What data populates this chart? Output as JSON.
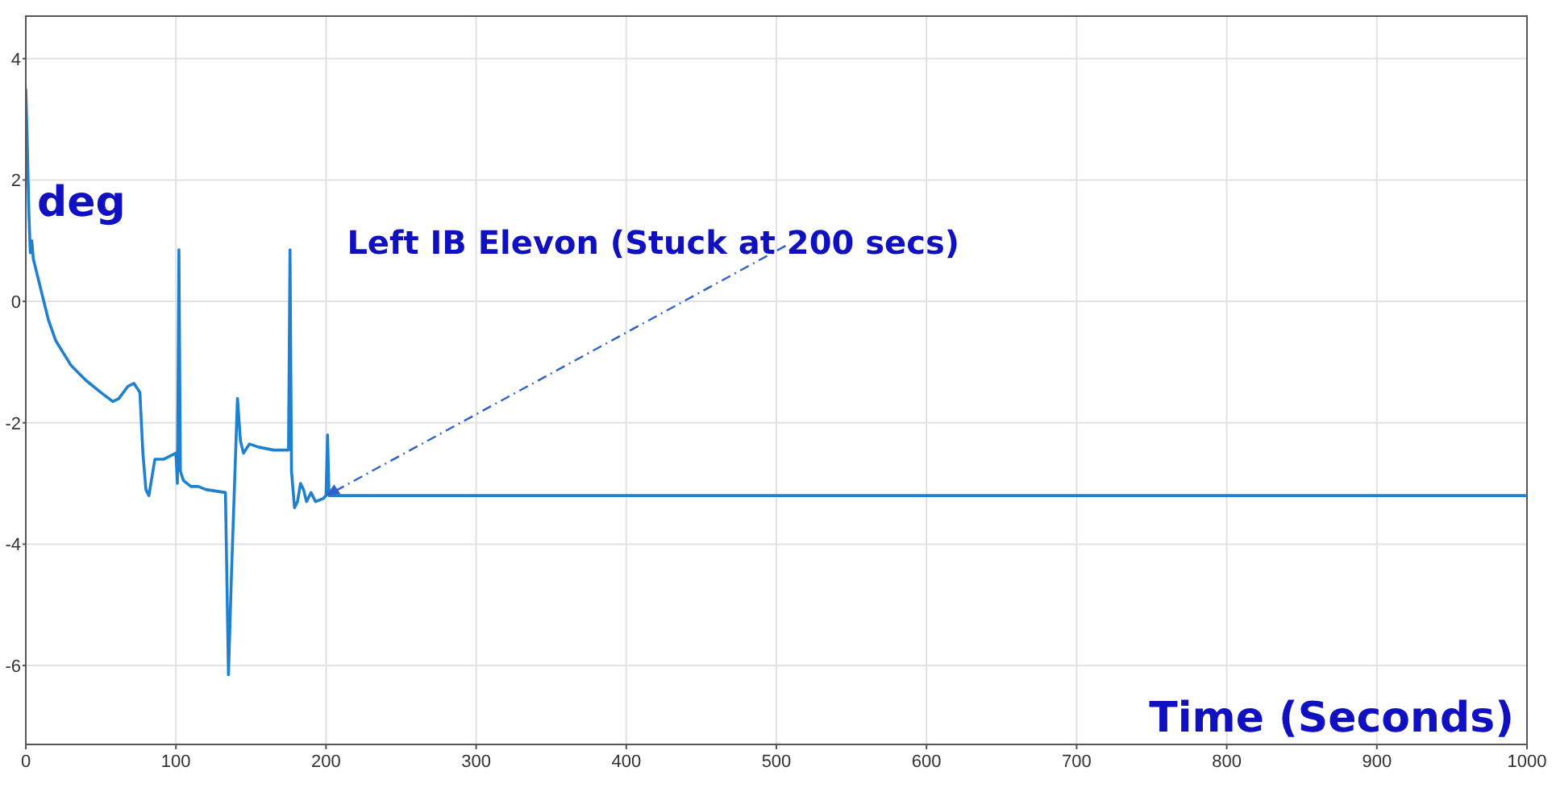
{
  "chart_data": {
    "type": "line",
    "xlabel": "Time (Seconds)",
    "ylabel": "deg",
    "annotations": [
      {
        "text": "Left IB Elevon (Stuck at 200 secs)",
        "x": 200,
        "y": -3.2
      }
    ],
    "x": [
      0,
      1,
      2,
      3,
      4,
      5,
      7,
      10,
      15,
      20,
      30,
      40,
      50,
      58,
      62,
      68,
      72,
      76,
      78,
      80,
      82,
      84,
      86,
      92,
      100,
      101,
      102,
      103,
      105,
      110,
      115,
      120,
      133,
      135,
      137,
      141,
      143,
      145,
      149,
      155,
      165,
      175,
      176,
      177,
      179,
      181,
      183,
      185,
      187,
      190,
      193,
      198,
      200,
      201,
      202,
      1000
    ],
    "series": [
      {
        "color": "#1f80d0",
        "values": [
          3.5,
          2.6,
          1.5,
          0.8,
          1.0,
          0.7,
          0.5,
          0.2,
          -0.3,
          -0.65,
          -1.05,
          -1.3,
          -1.5,
          -1.65,
          -1.6,
          -1.4,
          -1.35,
          -1.5,
          -2.5,
          -3.1,
          -3.2,
          -2.9,
          -2.6,
          -2.6,
          -2.5,
          -3.0,
          0.85,
          -2.8,
          -2.95,
          -3.05,
          -3.05,
          -3.1,
          -3.15,
          -6.15,
          -4.5,
          -1.6,
          -2.3,
          -2.5,
          -2.35,
          -2.4,
          -2.45,
          -2.45,
          0.85,
          -2.8,
          -3.4,
          -3.3,
          -3.0,
          -3.1,
          -3.3,
          -3.15,
          -3.3,
          -3.25,
          -3.2,
          -2.2,
          -3.2,
          -3.2
        ]
      }
    ],
    "xlim": [
      0,
      1000
    ],
    "xticks": [
      0,
      100,
      200,
      300,
      400,
      500,
      600,
      700,
      800,
      900,
      1000
    ],
    "ylim": [
      -7.3,
      4.7
    ],
    "yticks": [
      -6,
      -4,
      -2,
      0,
      2,
      4
    ],
    "grid": true,
    "marker": "none",
    "line_style": "solid",
    "legend": false
  }
}
